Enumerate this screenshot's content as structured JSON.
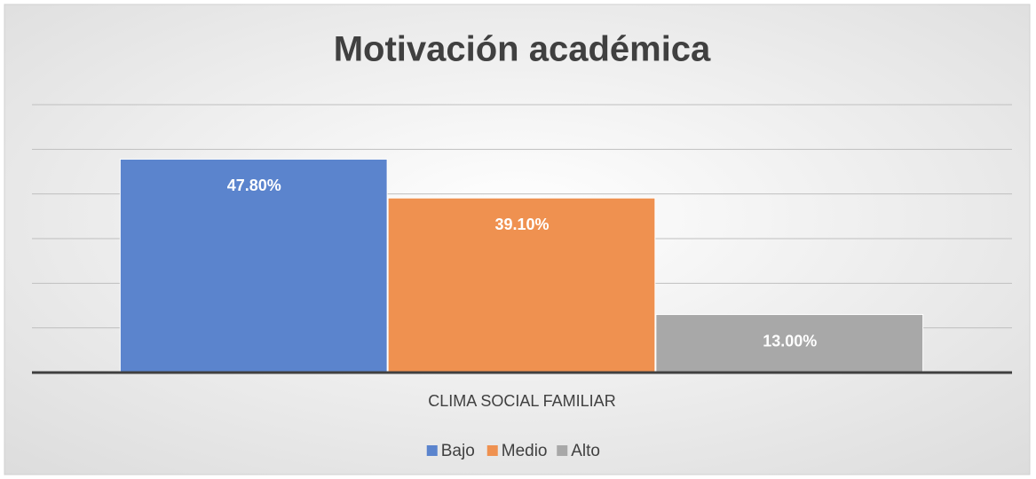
{
  "chart_data": {
    "type": "bar",
    "title": "Motivación académica",
    "categories": [
      "CLIMA SOCIAL FAMILIAR"
    ],
    "series": [
      {
        "name": "Bajo",
        "color": "#5b84cd",
        "values": [
          47.8
        ],
        "value_labels": [
          "47.80%"
        ]
      },
      {
        "name": "Medio",
        "color": "#ef9150",
        "values": [
          39.1
        ],
        "value_labels": [
          "39.10%"
        ]
      },
      {
        "name": "Alto",
        "color": "#a8a8a8",
        "values": [
          13.0
        ],
        "value_labels": [
          "13.00%"
        ]
      }
    ],
    "ylim": [
      0,
      60
    ],
    "yticks": [
      0,
      10,
      20,
      30,
      40,
      50,
      60
    ],
    "grid": true,
    "legend": "bottom"
  }
}
